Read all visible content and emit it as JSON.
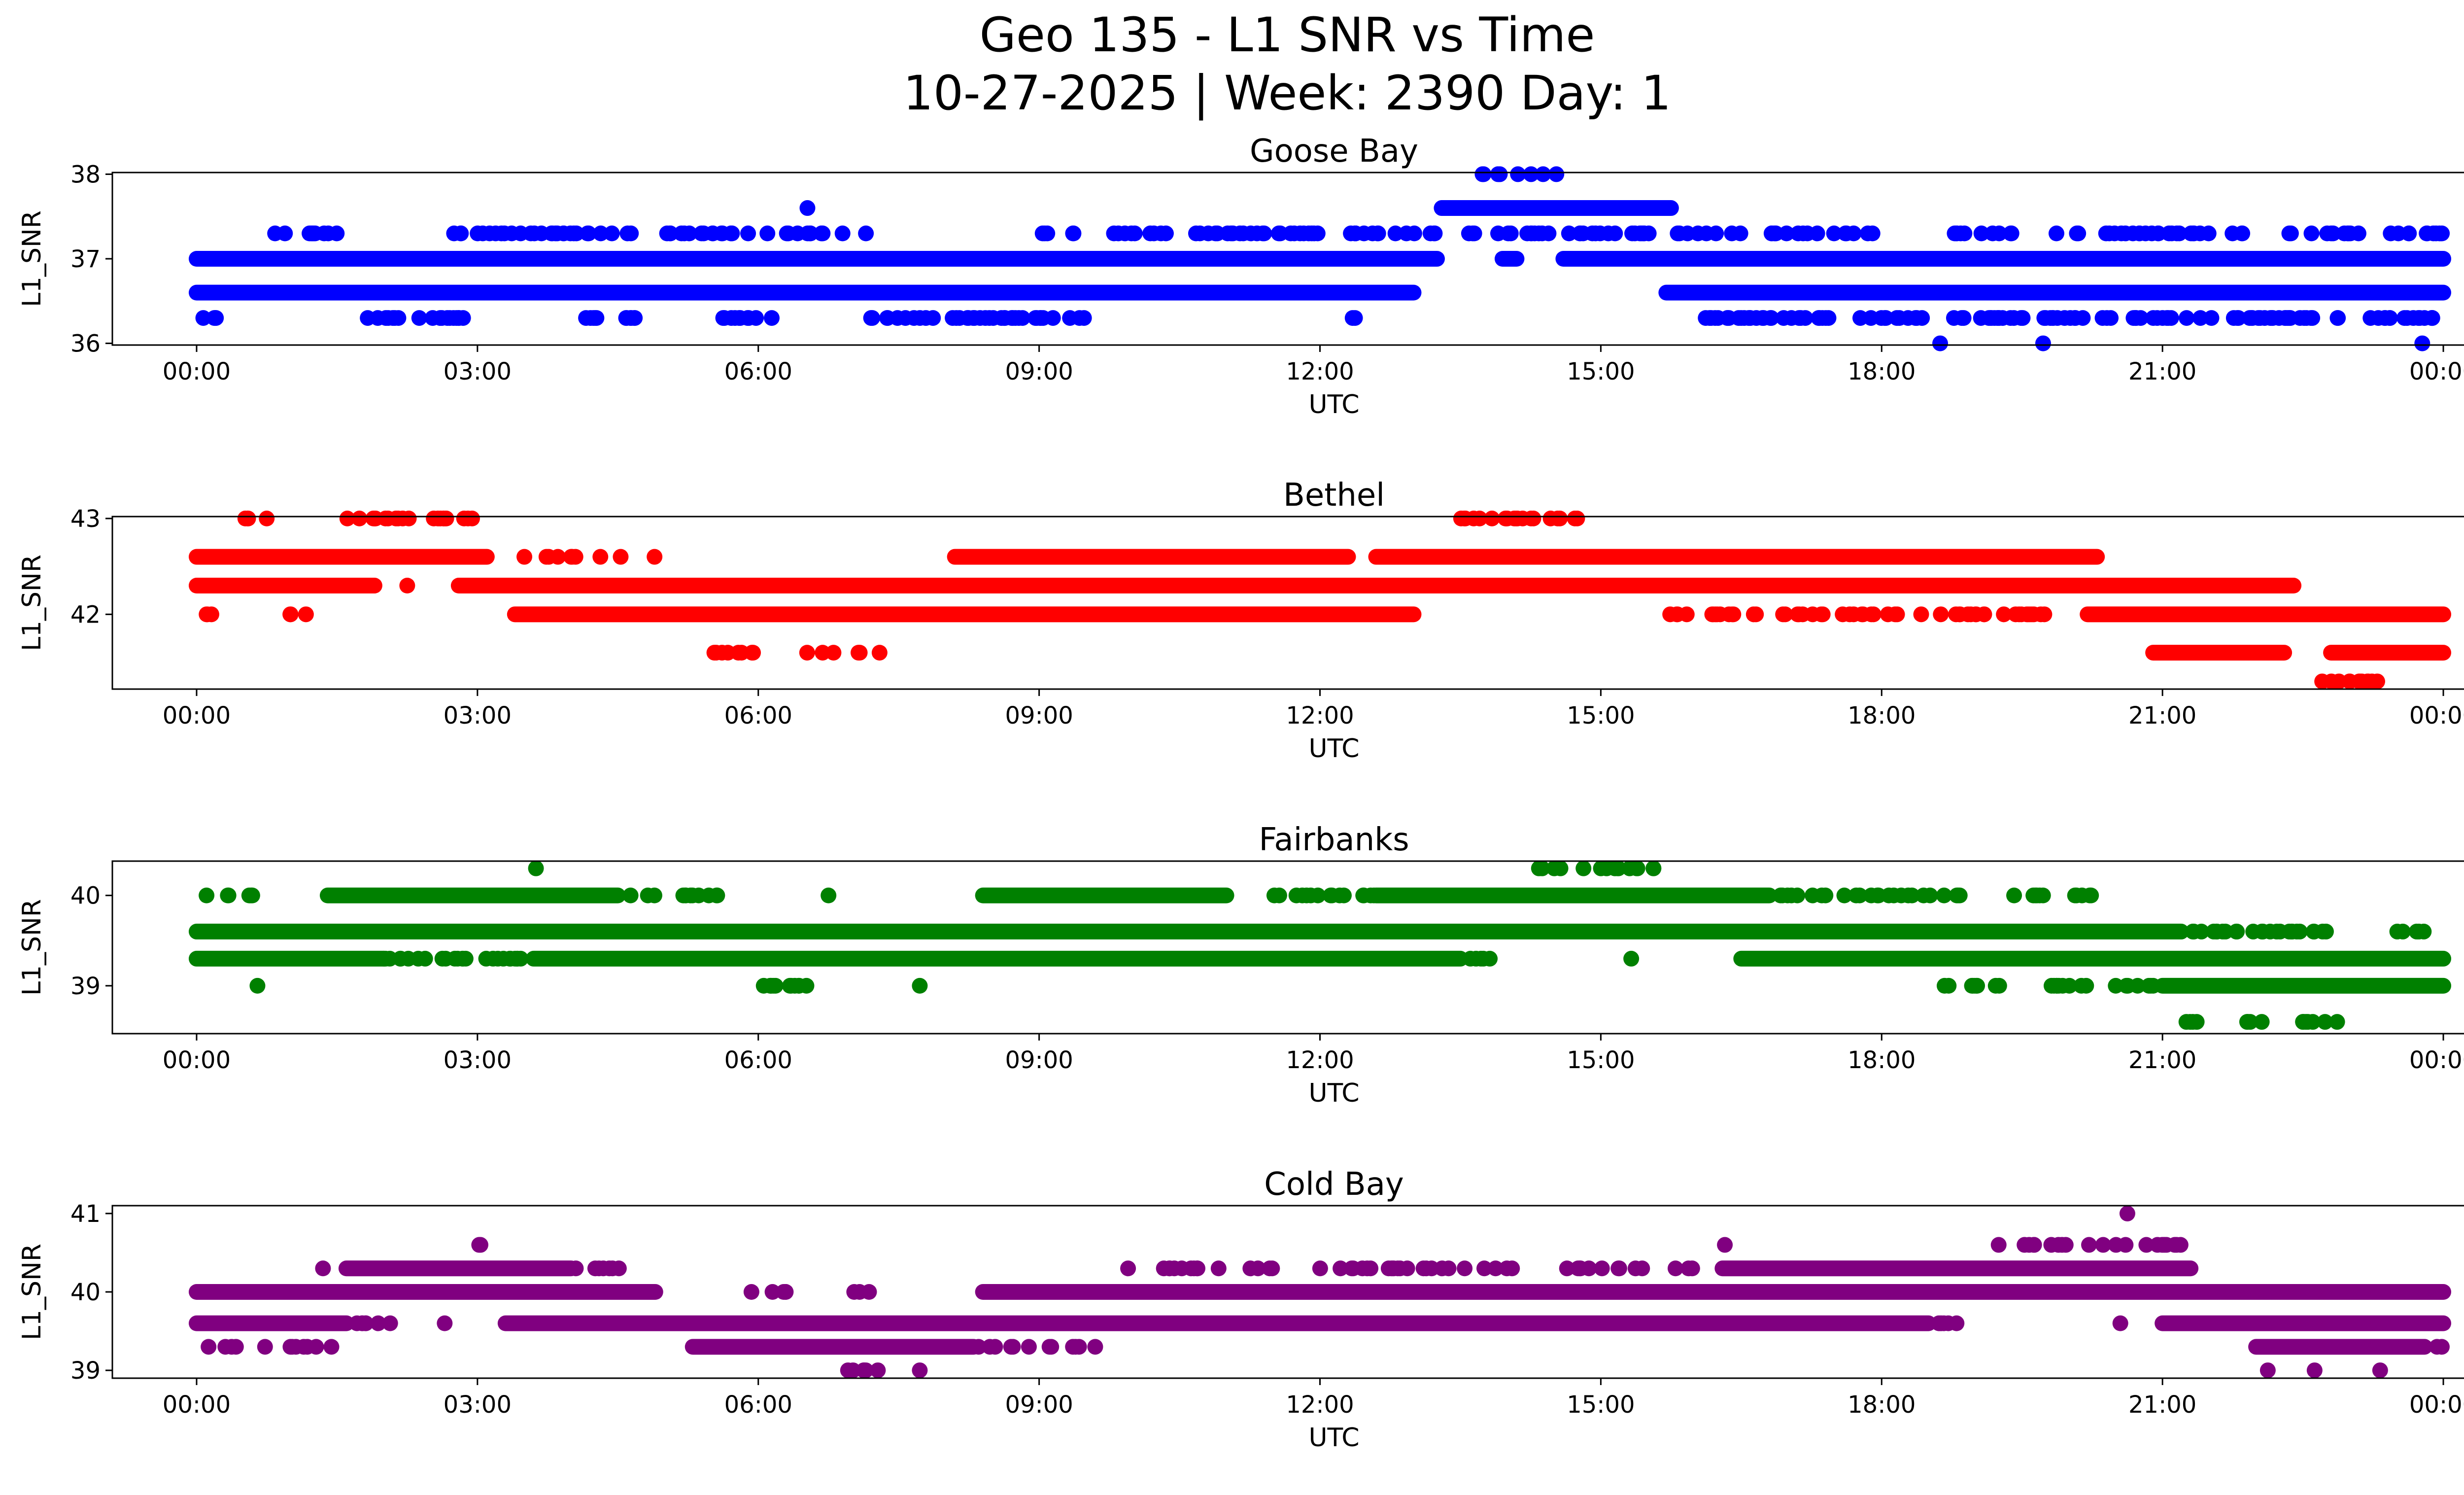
{
  "title_line1": "Geo 135 - L1 SNR vs Time",
  "title_line2": "10-27-2025 | Week: 2390 Day: 1",
  "chart_data": [
    {
      "type": "scatter",
      "title": "Goose Bay",
      "xlabel": "UTC",
      "ylabel": "L1_SNR",
      "color": "#0000ff",
      "x_ticks": [
        "00:00",
        "03:00",
        "06:00",
        "09:00",
        "12:00",
        "15:00",
        "18:00",
        "21:00",
        "00:00"
      ],
      "y_ticks": [
        36,
        37,
        38
      ],
      "ylim": [
        35.98,
        38.02
      ],
      "bands": [
        {
          "y": 37.0,
          "ranges": [
            [
              0,
              13.25
            ],
            [
              13.95,
              14.1
            ],
            [
              14.6,
              24
            ]
          ]
        },
        {
          "y": 36.6,
          "ranges": [
            [
              0,
              13.0
            ],
            [
              15.7,
              24
            ]
          ]
        },
        {
          "y": 37.6,
          "ranges": [
            [
              13.3,
              15.75
            ]
          ]
        }
      ],
      "clusters": [
        {
          "y": 37.3,
          "ranges": [
            [
              0.7,
              1.5
            ],
            [
              2.4,
              6.2
            ],
            [
              6.3,
              7.2
            ],
            [
              9.0,
              13.2
            ],
            [
              13.2,
              16.5
            ],
            [
              16.7,
              18.0
            ],
            [
              18.6,
              19.4
            ],
            [
              19.8,
              22.0
            ],
            [
              22.3,
              24
            ]
          ],
          "n": 230
        },
        {
          "y": 36.3,
          "ranges": [
            [
              0.05,
              0.3
            ],
            [
              1.8,
              2.9
            ],
            [
              4.1,
              4.8
            ],
            [
              5.6,
              6.2
            ],
            [
              7.1,
              9.5
            ],
            [
              12.3,
              12.45
            ],
            [
              16.1,
              20.8
            ],
            [
              20.8,
              24
            ]
          ],
          "n": 210
        },
        {
          "y": 37.6,
          "ranges": [
            [
              6.5,
              6.55
            ]
          ],
          "n": 1
        },
        {
          "y": 38.0,
          "ranges": [
            [
              13.6,
              14.7
            ]
          ],
          "n": 8
        },
        {
          "y": 36.0,
          "ranges": [
            [
              18.6,
              18.65
            ],
            [
              19.7,
              19.75
            ],
            [
              23.75,
              23.8
            ]
          ],
          "n": 3
        }
      ]
    },
    {
      "type": "scatter",
      "title": "Bethel",
      "xlabel": "UTC",
      "ylabel": "L1_SNR",
      "color": "#ff0000",
      "x_ticks": [
        "00:00",
        "03:00",
        "06:00",
        "09:00",
        "12:00",
        "15:00",
        "18:00",
        "21:00",
        "00:00"
      ],
      "y_ticks": [
        42,
        43
      ],
      "ylim": [
        41.22,
        43.02
      ],
      "bands": [
        {
          "y": 42.3,
          "ranges": [
            [
              0,
              1.9
            ],
            [
              2.8,
              22.4
            ]
          ]
        },
        {
          "y": 42.0,
          "ranges": [
            [
              3.4,
              13.0
            ],
            [
              20.2,
              24
            ]
          ]
        },
        {
          "y": 42.6,
          "ranges": [
            [
              0,
              3.1
            ],
            [
              8.1,
              12.3
            ],
            [
              12.6,
              20.3
            ]
          ]
        },
        {
          "y": 41.6,
          "ranges": [
            [
              20.9,
              22.3
            ],
            [
              22.8,
              24
            ]
          ]
        }
      ],
      "clusters": [
        {
          "y": 43.0,
          "ranges": [
            [
              0.5,
              0.8
            ],
            [
              1.6,
              3.0
            ],
            [
              13.5,
              14.8
            ]
          ],
          "n": 45
        },
        {
          "y": 42.0,
          "ranges": [
            [
              0,
              0.2
            ],
            [
              1.0,
              1.2
            ],
            [
              15.7,
              17.3
            ],
            [
              17.3,
              20.0
            ]
          ],
          "n": 60
        },
        {
          "y": 41.6,
          "ranges": [
            [
              5.2,
              7.3
            ]
          ],
          "n": 14
        },
        {
          "y": 42.6,
          "ranges": [
            [
              3.3,
              5.0
            ]
          ],
          "n": 10
        },
        {
          "y": 41.3,
          "ranges": [
            [
              22.7,
              23.3
            ]
          ],
          "n": 12
        },
        {
          "y": 42.3,
          "ranges": [
            [
              2.2,
              2.3
            ]
          ],
          "n": 1
        }
      ]
    },
    {
      "type": "scatter",
      "title": "Fairbanks",
      "xlabel": "UTC",
      "ylabel": "L1_SNR",
      "color": "#008000",
      "x_ticks": [
        "00:00",
        "03:00",
        "06:00",
        "09:00",
        "12:00",
        "15:00",
        "18:00",
        "21:00",
        "00:00"
      ],
      "y_ticks": [
        39,
        40
      ],
      "ylim": [
        38.47,
        40.38
      ],
      "bands": [
        {
          "y": 39.6,
          "ranges": [
            [
              0,
              21.2
            ]
          ]
        },
        {
          "y": 39.3,
          "ranges": [
            [
              0,
              2.0
            ],
            [
              3.6,
              13.5
            ],
            [
              16.5,
              24
            ]
          ]
        },
        {
          "y": 40.0,
          "ranges": [
            [
              1.4,
              4.5
            ],
            [
              8.4,
              11.0
            ],
            [
              12.6,
              16.8
            ]
          ]
        },
        {
          "y": 39.0,
          "ranges": [
            [
              21.0,
              24
            ]
          ]
        }
      ],
      "clusters": [
        {
          "y": 40.0,
          "ranges": [
            [
              0.1,
              0.6
            ],
            [
              4.5,
              5.6
            ],
            [
              6.7,
              6.8
            ],
            [
              11.3,
              12.6
            ],
            [
              16.8,
              19.0
            ],
            [
              19.3,
              20.3
            ]
          ],
          "n": 70
        },
        {
          "y": 39.6,
          "ranges": [
            [
              21.2,
              22.8
            ],
            [
              23.5,
              23.8
            ]
          ],
          "n": 30
        },
        {
          "y": 39.3,
          "ranges": [
            [
              2.0,
              3.6
            ],
            [
              13.6,
              13.9
            ],
            [
              15.3,
              15.35
            ]
          ],
          "n": 30
        },
        {
          "y": 39.0,
          "ranges": [
            [
              0.6,
              0.7
            ],
            [
              5.9,
              6.8
            ],
            [
              7.7,
              7.75
            ],
            [
              18.6,
              19.3
            ],
            [
              19.8,
              21.0
            ]
          ],
          "n": 40
        },
        {
          "y": 40.3,
          "ranges": [
            [
              3.6,
              3.65
            ],
            [
              14.3,
              15.8
            ]
          ],
          "n": 16
        },
        {
          "y": 38.6,
          "ranges": [
            [
              21.1,
              21.4
            ],
            [
              21.9,
              22.2
            ],
            [
              22.5,
              23.0
            ]
          ],
          "n": 16
        }
      ]
    },
    {
      "type": "scatter",
      "title": "Cold Bay",
      "xlabel": "UTC",
      "ylabel": "L1_SNR",
      "color": "#800080",
      "x_ticks": [
        "00:00",
        "03:00",
        "06:00",
        "09:00",
        "12:00",
        "15:00",
        "18:00",
        "21:00",
        "00:00"
      ],
      "y_ticks": [
        39,
        40,
        41
      ],
      "ylim": [
        38.9,
        41.1
      ],
      "bands": [
        {
          "y": 39.6,
          "ranges": [
            [
              0,
              1.6
            ],
            [
              3.3,
              18.5
            ],
            [
              21.0,
              24
            ]
          ]
        },
        {
          "y": 40.0,
          "ranges": [
            [
              0,
              4.9
            ],
            [
              8.4,
              24
            ]
          ]
        },
        {
          "y": 40.3,
          "ranges": [
            [
              1.6,
              4.0
            ],
            [
              16.3,
              21.3
            ]
          ]
        },
        {
          "y": 39.3,
          "ranges": [
            [
              5.3,
              8.3
            ],
            [
              22.0,
              23.8
            ]
          ]
        }
      ],
      "clusters": [
        {
          "y": 40.3,
          "ranges": [
            [
              1.3,
              1.4
            ],
            [
              4.0,
              4.6
            ],
            [
              9.9,
              10.0
            ],
            [
              10.3,
              11.6
            ],
            [
              11.9,
              14.1
            ],
            [
              14.6,
              15.5
            ],
            [
              15.7,
              16.0
            ]
          ],
          "n": 60
        },
        {
          "y": 39.3,
          "ranges": [
            [
              0.1,
              1.5
            ],
            [
              8.3,
              9.7
            ],
            [
              23.8,
              24
            ]
          ],
          "n": 25
        },
        {
          "y": 39.6,
          "ranges": [
            [
              1.7,
              2.3
            ],
            [
              2.6,
              2.7
            ],
            [
              18.5,
              18.9
            ],
            [
              20.5,
              20.6
            ]
          ],
          "n": 14
        },
        {
          "y": 40.6,
          "ranges": [
            [
              2.9,
              3.1
            ],
            [
              16.3,
              16.35
            ],
            [
              19.2,
              19.3
            ],
            [
              19.5,
              21.2
            ]
          ],
          "n": 24
        },
        {
          "y": 40.0,
          "ranges": [
            [
              5.9,
              6.4
            ],
            [
              7.0,
              7.3
            ]
          ],
          "n": 8
        },
        {
          "y": 39.0,
          "ranges": [
            [
              6.9,
              7.3
            ],
            [
              7.7,
              7.75
            ],
            [
              22.1,
              22.15
            ],
            [
              22.6,
              22.65
            ],
            [
              23.3,
              23.35
            ]
          ],
          "n": 9
        },
        {
          "y": 41.0,
          "ranges": [
            [
              20.6,
              20.65
            ]
          ],
          "n": 1
        }
      ]
    }
  ]
}
